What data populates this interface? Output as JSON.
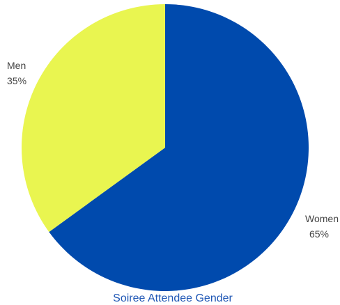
{
  "chart_data": {
    "type": "pie",
    "title": "Soiree Attendee Gender",
    "slices": [
      {
        "label": "Women",
        "value": 65,
        "value_label": "65%",
        "color": "#004aad"
      },
      {
        "label": "Men",
        "value": 35,
        "value_label": "35%",
        "color": "#e9f550"
      }
    ],
    "start": "top",
    "direction": "clockwise",
    "title_color": "#1f57b5",
    "label_color": "#444444"
  }
}
